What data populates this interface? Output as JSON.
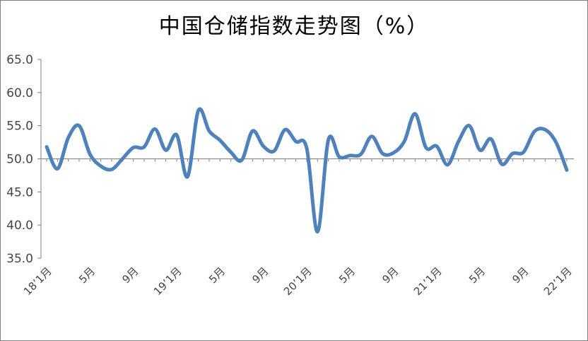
{
  "chart_data": {
    "type": "line",
    "title": "中国仓储指数走势图（%）",
    "xlabel": "",
    "ylabel": "",
    "ylim": [
      35,
      65
    ],
    "yticks": [
      "35.0",
      "40.0",
      "45.0",
      "50.0",
      "55.0",
      "60.0",
      "65.0"
    ],
    "reference_line": 50,
    "grid": false,
    "color": "#4F81BD",
    "x_tick_labels": [
      {
        "index": 0,
        "label": "18’1月"
      },
      {
        "index": 4,
        "label": "5月"
      },
      {
        "index": 8,
        "label": "9月"
      },
      {
        "index": 12,
        "label": "19’1月"
      },
      {
        "index": 16,
        "label": "5月"
      },
      {
        "index": 20,
        "label": "9月"
      },
      {
        "index": 24,
        "label": "20’1月"
      },
      {
        "index": 28,
        "label": "5月"
      },
      {
        "index": 32,
        "label": "9月"
      },
      {
        "index": 36,
        "label": "21’1月"
      },
      {
        "index": 40,
        "label": "5月"
      },
      {
        "index": 44,
        "label": "9月"
      },
      {
        "index": 48,
        "label": "22’1月"
      }
    ],
    "series": [
      {
        "values": [
          51.8,
          48.5,
          53.2,
          55.0,
          50.7,
          48.9,
          48.4,
          50.0,
          51.7,
          51.8,
          54.5,
          51.3,
          53.6,
          47.3,
          57.3,
          54.2,
          52.8,
          51.0,
          49.8,
          54.2,
          51.9,
          51.2,
          54.4,
          52.6,
          51.6,
          39.0,
          52.9,
          50.3,
          50.5,
          50.7,
          53.4,
          50.8,
          50.9,
          52.6,
          56.8,
          51.7,
          51.9,
          49.1,
          52.6,
          55.0,
          51.3,
          53.0,
          49.2,
          50.8,
          51.0,
          54.1,
          54.4,
          52.5,
          48.3
        ]
      }
    ]
  }
}
